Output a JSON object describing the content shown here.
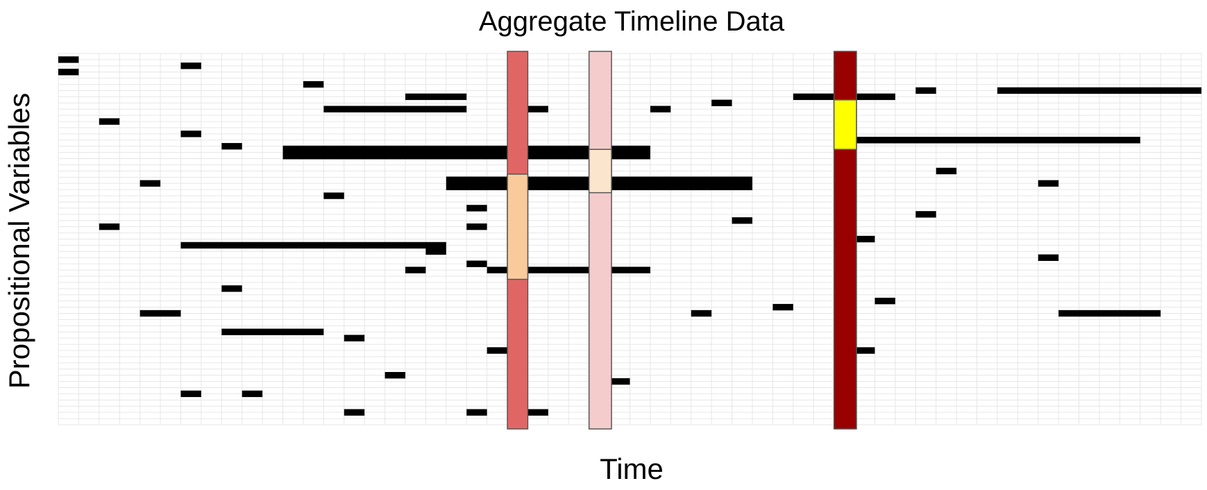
{
  "chart_data": {
    "type": "timeline",
    "title": "Aggregate Timeline Data",
    "xlabel": "Time",
    "ylabel": "Propositional Variables",
    "xlim": [
      0,
      56
    ],
    "ylim": [
      0,
      60
    ],
    "grid": true,
    "bar_color": "#000000",
    "thick_bar_color": "#000000",
    "intervals": [
      {
        "row": 1,
        "start": 0,
        "end": 1
      },
      {
        "row": 3,
        "start": 0,
        "end": 1
      },
      {
        "row": 2,
        "start": 6,
        "end": 7
      },
      {
        "row": 5,
        "start": 12,
        "end": 13
      },
      {
        "row": 6,
        "start": 42,
        "end": 43
      },
      {
        "row": 6,
        "start": 46,
        "end": 56
      },
      {
        "row": 7,
        "start": 17,
        "end": 20
      },
      {
        "row": 7,
        "start": 36,
        "end": 41
      },
      {
        "row": 8,
        "start": 32,
        "end": 33
      },
      {
        "row": 9,
        "start": 13,
        "end": 20
      },
      {
        "row": 9,
        "start": 23,
        "end": 24
      },
      {
        "row": 9,
        "start": 29,
        "end": 30
      },
      {
        "row": 11,
        "start": 2,
        "end": 3
      },
      {
        "row": 13,
        "start": 6,
        "end": 7
      },
      {
        "row": 14,
        "start": 39,
        "end": 53
      },
      {
        "row": 15,
        "start": 8,
        "end": 9
      },
      {
        "row": 16,
        "start": 11,
        "end": 29,
        "thick": true
      },
      {
        "row": 19,
        "start": 43,
        "end": 44
      },
      {
        "row": 21,
        "start": 4,
        "end": 5
      },
      {
        "row": 21,
        "start": 19,
        "end": 34,
        "thick": true
      },
      {
        "row": 21,
        "start": 48,
        "end": 49
      },
      {
        "row": 23,
        "start": 13,
        "end": 14
      },
      {
        "row": 25,
        "start": 20,
        "end": 21
      },
      {
        "row": 26,
        "start": 42,
        "end": 43
      },
      {
        "row": 27,
        "start": 33,
        "end": 34
      },
      {
        "row": 28,
        "start": 2,
        "end": 3
      },
      {
        "row": 28,
        "start": 20,
        "end": 21
      },
      {
        "row": 30,
        "start": 39,
        "end": 40
      },
      {
        "row": 31,
        "start": 6,
        "end": 19
      },
      {
        "row": 32,
        "start": 18,
        "end": 19
      },
      {
        "row": 33,
        "start": 48,
        "end": 49
      },
      {
        "row": 34,
        "start": 20,
        "end": 21
      },
      {
        "row": 35,
        "start": 17,
        "end": 18
      },
      {
        "row": 35,
        "start": 21,
        "end": 29
      },
      {
        "row": 38,
        "start": 8,
        "end": 9
      },
      {
        "row": 40,
        "start": 40,
        "end": 41
      },
      {
        "row": 41,
        "start": 35,
        "end": 36
      },
      {
        "row": 42,
        "start": 4,
        "end": 6
      },
      {
        "row": 42,
        "start": 31,
        "end": 32
      },
      {
        "row": 42,
        "start": 49,
        "end": 54
      },
      {
        "row": 45,
        "start": 8,
        "end": 13
      },
      {
        "row": 46,
        "start": 14,
        "end": 15
      },
      {
        "row": 48,
        "start": 21,
        "end": 22
      },
      {
        "row": 48,
        "start": 39,
        "end": 40
      },
      {
        "row": 52,
        "start": 16,
        "end": 17
      },
      {
        "row": 53,
        "start": 27,
        "end": 28
      },
      {
        "row": 55,
        "start": 6,
        "end": 7
      },
      {
        "row": 55,
        "start": 9,
        "end": 10
      },
      {
        "row": 58,
        "start": 14,
        "end": 15
      },
      {
        "row": 58,
        "start": 20,
        "end": 21
      },
      {
        "row": 58,
        "start": 23,
        "end": 24
      }
    ],
    "vertical_bands": [
      {
        "start": 22,
        "end": 23,
        "color": "#e06666"
      },
      {
        "start": 26,
        "end": 27.1,
        "color": "#f4cccc"
      },
      {
        "start": 38,
        "end": 39.1,
        "color": "#990000"
      }
    ],
    "highlights": [
      {
        "start": 22,
        "end": 23,
        "row_start": 19.5,
        "row_end": 36.5,
        "color": "#f9cb9c"
      },
      {
        "start": 26,
        "end": 27.1,
        "row_start": 15.5,
        "row_end": 22.5,
        "color": "#fce5cd"
      },
      {
        "start": 38,
        "end": 39.1,
        "row_start": 7.5,
        "row_end": 15.5,
        "color": "#ffff00"
      }
    ]
  }
}
